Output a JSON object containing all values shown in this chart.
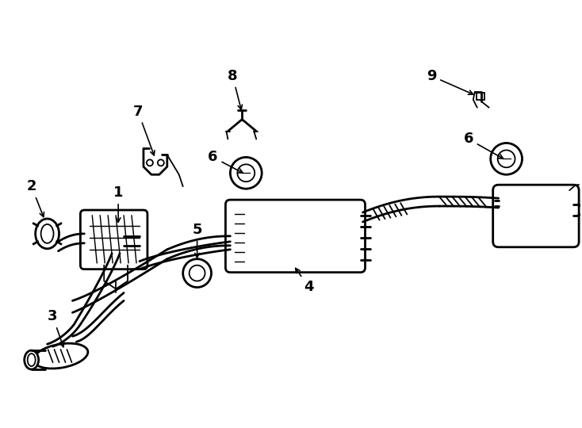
{
  "bg_color": "#ffffff",
  "line_color": "#000000",
  "lw": 1.3,
  "lw2": 2.0,
  "fig_width": 7.34,
  "fig_height": 5.4,
  "dpi": 100
}
